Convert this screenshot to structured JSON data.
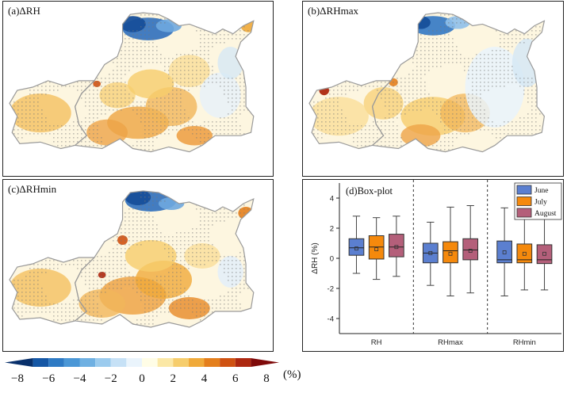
{
  "panels": {
    "a": {
      "title": "(a)ΔRH"
    },
    "b": {
      "title": "(b)ΔRHmax"
    },
    "c": {
      "title": "(c)ΔRHmin"
    }
  },
  "chart_data": {
    "type": "box",
    "title": "(d)Box-plot",
    "ylabel": "ΔRH (%)",
    "ylim": [
      -5,
      5
    ],
    "yticks": [
      4,
      2,
      0,
      -2,
      -4
    ],
    "categories": [
      "RH",
      "RHmax",
      "RHmin"
    ],
    "legend": {
      "placement": "top-right",
      "entries": [
        "June",
        "July",
        "August"
      ]
    },
    "series_colors": {
      "June": "#5b7fd0",
      "July": "#f5890c",
      "August": "#b45f7a"
    },
    "boxes": [
      {
        "group": "RH",
        "series": "June",
        "min": -1.0,
        "q1": 0.2,
        "median": 0.7,
        "q3": 1.3,
        "max": 2.8,
        "mean": 0.65
      },
      {
        "group": "RH",
        "series": "July",
        "min": -1.4,
        "q1": -0.05,
        "median": 0.75,
        "q3": 1.5,
        "max": 2.7,
        "mean": 0.6
      },
      {
        "group": "RH",
        "series": "August",
        "min": -1.2,
        "q1": 0.1,
        "median": 0.75,
        "q3": 1.6,
        "max": 2.8,
        "mean": 0.75
      },
      {
        "group": "RHmax",
        "series": "June",
        "min": -1.8,
        "q1": -0.3,
        "median": 0.35,
        "q3": 1.0,
        "max": 2.4,
        "mean": 0.35
      },
      {
        "group": "RHmax",
        "series": "July",
        "min": -2.5,
        "q1": -0.3,
        "median": 0.5,
        "q3": 1.1,
        "max": 3.4,
        "mean": 0.3
      },
      {
        "group": "RHmax",
        "series": "August",
        "min": -2.3,
        "q1": -0.1,
        "median": 0.55,
        "q3": 1.3,
        "max": 3.5,
        "mean": 0.5
      },
      {
        "group": "RHmin",
        "series": "June",
        "min": -2.5,
        "q1": -0.3,
        "median": -0.1,
        "q3": 1.15,
        "max": 3.35,
        "mean": 0.4
      },
      {
        "group": "RHmin",
        "series": "July",
        "min": -2.1,
        "q1": -0.3,
        "median": -0.1,
        "q3": 0.95,
        "max": 2.9,
        "mean": 0.3
      },
      {
        "group": "RHmin",
        "series": "August",
        "min": -2.1,
        "q1": -0.35,
        "median": -0.1,
        "q3": 0.9,
        "max": 2.75,
        "mean": 0.3
      }
    ]
  },
  "colorbar": {
    "unit": "(%)",
    "tick_labels": [
      "−8",
      "−6",
      "−4",
      "−2",
      "0",
      "2",
      "4",
      "6",
      "8"
    ],
    "range": [
      -8,
      8
    ],
    "colors": [
      "#08306b",
      "#1557a5",
      "#2e7ac4",
      "#4b97d6",
      "#6fb0e2",
      "#9bcbee",
      "#c6e1f6",
      "#eaf4fc",
      "#fffde6",
      "#fbe8a6",
      "#f6cd6c",
      "#f0aa3a",
      "#e47f1d",
      "#cf5212",
      "#ad2810",
      "#7f0a0a"
    ]
  }
}
